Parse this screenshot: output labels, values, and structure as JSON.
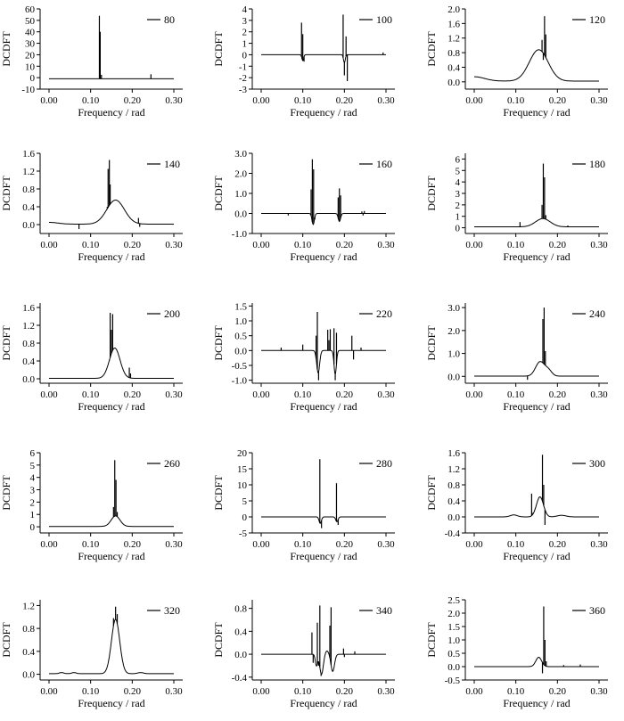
{
  "figure": {
    "panel_ylabel": "DCDFT",
    "panel_xlabel": "Frequency / rad"
  },
  "chart_data": [
    {
      "type": "line",
      "legend": "80",
      "xlabel": "Frequency / rad",
      "ylabel": "DCDFT",
      "xlim": [
        0,
        0.3
      ],
      "xticks": [
        "0.00",
        "0.10",
        "0.20",
        "0.30"
      ],
      "ylim": [
        -10,
        60
      ],
      "yticks": [
        "-10",
        "0",
        "10",
        "20",
        "30",
        "40",
        "50",
        "60"
      ],
      "background": {
        "base": -1,
        "bumps": []
      },
      "spikes": [
        {
          "x": 0.121,
          "y": 54
        },
        {
          "x": 0.123,
          "y": 40
        },
        {
          "x": 0.126,
          "y": 2.5
        },
        {
          "x": 0.245,
          "y": 3
        }
      ]
    },
    {
      "type": "line",
      "legend": "100",
      "xlabel": "Frequency / rad",
      "ylabel": "DCDFT",
      "xlim": [
        0,
        0.3
      ],
      "xticks": [
        "0.00",
        "0.10",
        "0.20",
        "0.30"
      ],
      "ylim": [
        -3,
        4
      ],
      "yticks": [
        "-3",
        "-2",
        "-1",
        "0",
        "1",
        "2",
        "3",
        "4"
      ],
      "background": {
        "base": 0,
        "bumps": [
          {
            "c": 0.1,
            "w": 0.003,
            "h": -0.5
          },
          {
            "c": 0.2,
            "w": 0.003,
            "h": -0.7
          }
        ]
      },
      "spikes": [
        {
          "x": 0.097,
          "y": 2.8
        },
        {
          "x": 0.1,
          "y": 1.8
        },
        {
          "x": 0.103,
          "y": -0.6
        },
        {
          "x": 0.197,
          "y": 3.5
        },
        {
          "x": 0.2,
          "y": -1.8
        },
        {
          "x": 0.204,
          "y": 1.6
        },
        {
          "x": 0.207,
          "y": -2.3
        },
        {
          "x": 0.293,
          "y": 0.2
        }
      ]
    },
    {
      "type": "line",
      "legend": "120",
      "xlabel": "Frequency / rad",
      "ylabel": "DCDFT",
      "xlim": [
        0,
        0.3
      ],
      "xticks": [
        "0.00",
        "0.10",
        "0.20",
        "0.30"
      ],
      "ylim": [
        -0.2,
        2.0
      ],
      "yticks": [
        "0.0",
        "0.4",
        "0.8",
        "1.2",
        "1.6",
        "2.0"
      ],
      "background": {
        "base": 0.02,
        "bumps": [
          {
            "c": 0.0,
            "w": 0.035,
            "h": 0.12
          },
          {
            "c": 0.155,
            "w": 0.032,
            "h": 0.86
          }
        ]
      },
      "spikes": [
        {
          "x": 0.163,
          "y": 1.15
        },
        {
          "x": 0.166,
          "y": 0.6
        },
        {
          "x": 0.169,
          "y": 1.8
        },
        {
          "x": 0.172,
          "y": 1.3
        }
      ]
    },
    {
      "type": "line",
      "legend": "140",
      "xlabel": "Frequency / rad",
      "ylabel": "DCDFT",
      "xlim": [
        0,
        0.3
      ],
      "xticks": [
        "0.00",
        "0.10",
        "0.20",
        "0.30"
      ],
      "ylim": [
        -0.2,
        1.6
      ],
      "yticks": [
        "0.0",
        "0.4",
        "0.8",
        "1.2",
        "1.6"
      ],
      "background": {
        "base": 0.01,
        "bumps": [
          {
            "c": 0.0,
            "w": 0.03,
            "h": 0.04
          },
          {
            "c": 0.16,
            "w": 0.03,
            "h": 0.54
          }
        ]
      },
      "spikes": [
        {
          "x": 0.072,
          "y": -0.1
        },
        {
          "x": 0.14,
          "y": 0.4
        },
        {
          "x": 0.142,
          "y": 1.25
        },
        {
          "x": 0.145,
          "y": 1.45
        },
        {
          "x": 0.147,
          "y": 0.9
        },
        {
          "x": 0.215,
          "y": 0.15
        },
        {
          "x": 0.218,
          "y": -0.05
        }
      ]
    },
    {
      "type": "line",
      "legend": "160",
      "xlabel": "Frequency / rad",
      "ylabel": "DCDFT",
      "xlim": [
        0,
        0.3
      ],
      "xticks": [
        "0.00",
        "0.10",
        "0.20",
        "0.30"
      ],
      "ylim": [
        -1.0,
        3.0
      ],
      "yticks": [
        "-1.0",
        "0.0",
        "1.0",
        "2.0",
        "3.0"
      ],
      "background": {
        "base": 0,
        "bumps": [
          {
            "c": 0.125,
            "w": 0.004,
            "h": -0.55
          },
          {
            "c": 0.188,
            "w": 0.004,
            "h": -0.4
          }
        ]
      },
      "spikes": [
        {
          "x": 0.065,
          "y": -0.1
        },
        {
          "x": 0.12,
          "y": 1.2
        },
        {
          "x": 0.123,
          "y": 2.7
        },
        {
          "x": 0.126,
          "y": 2.2
        },
        {
          "x": 0.129,
          "y": -0.3
        },
        {
          "x": 0.185,
          "y": 0.8
        },
        {
          "x": 0.188,
          "y": 1.25
        },
        {
          "x": 0.191,
          "y": 0.9
        },
        {
          "x": 0.242,
          "y": 0.1
        },
        {
          "x": 0.245,
          "y": -0.1
        },
        {
          "x": 0.248,
          "y": 0.12
        }
      ]
    },
    {
      "type": "line",
      "legend": "180",
      "xlabel": "Frequency / rad",
      "ylabel": "DCDFT",
      "xlim": [
        0,
        0.3
      ],
      "xticks": [
        "0.00",
        "0.10",
        "0.20",
        "0.30"
      ],
      "ylim": [
        -0.5,
        6.5
      ],
      "yticks": [
        "0",
        "1",
        "2",
        "3",
        "4",
        "5",
        "6"
      ],
      "background": {
        "base": 0.08,
        "bumps": [
          {
            "c": 0.165,
            "w": 0.025,
            "h": 0.72
          }
        ]
      },
      "spikes": [
        {
          "x": 0.11,
          "y": 0.5
        },
        {
          "x": 0.163,
          "y": 2.0
        },
        {
          "x": 0.166,
          "y": 5.6
        },
        {
          "x": 0.169,
          "y": 4.4
        },
        {
          "x": 0.172,
          "y": 1.1
        },
        {
          "x": 0.225,
          "y": 0.2
        }
      ]
    },
    {
      "type": "line",
      "legend": "200",
      "xlabel": "Frequency / rad",
      "ylabel": "DCDFT",
      "xlim": [
        0,
        0.3
      ],
      "xticks": [
        "0.00",
        "0.10",
        "0.20",
        "0.30"
      ],
      "ylim": [
        -0.1,
        1.7
      ],
      "yticks": [
        "0.0",
        "0.4",
        "0.8",
        "1.2",
        "1.6"
      ],
      "background": {
        "base": 0.01,
        "bumps": [
          {
            "c": 0.158,
            "w": 0.018,
            "h": 0.68
          }
        ]
      },
      "spikes": [
        {
          "x": 0.145,
          "y": 0.4
        },
        {
          "x": 0.147,
          "y": 1.48
        },
        {
          "x": 0.15,
          "y": 1.1
        },
        {
          "x": 0.153,
          "y": 1.45
        },
        {
          "x": 0.193,
          "y": 0.25
        },
        {
          "x": 0.196,
          "y": 0.12
        }
      ]
    },
    {
      "type": "line",
      "legend": "220",
      "xlabel": "Frequency / rad",
      "ylabel": "DCDFT",
      "xlim": [
        0,
        0.3
      ],
      "xticks": [
        "0.00",
        "0.10",
        "0.20",
        "0.30"
      ],
      "ylim": [
        -1.1,
        1.6
      ],
      "yticks": [
        "-1.0",
        "-0.5",
        "0.0",
        "0.5",
        "1.0",
        "1.5"
      ],
      "background": {
        "base": 0,
        "bumps": [
          {
            "c": 0.137,
            "w": 0.005,
            "h": -0.75
          },
          {
            "c": 0.178,
            "w": 0.004,
            "h": -0.8
          }
        ]
      },
      "spikes": [
        {
          "x": 0.048,
          "y": 0.1
        },
        {
          "x": 0.1,
          "y": 0.2
        },
        {
          "x": 0.132,
          "y": 0.5
        },
        {
          "x": 0.135,
          "y": 1.3
        },
        {
          "x": 0.138,
          "y": -1.0
        },
        {
          "x": 0.16,
          "y": 0.7
        },
        {
          "x": 0.163,
          "y": 0.35
        },
        {
          "x": 0.166,
          "y": 0.72
        },
        {
          "x": 0.175,
          "y": 0.75
        },
        {
          "x": 0.178,
          "y": -1.0
        },
        {
          "x": 0.181,
          "y": 0.6
        },
        {
          "x": 0.218,
          "y": 0.5
        },
        {
          "x": 0.222,
          "y": -0.3
        },
        {
          "x": 0.24,
          "y": 0.1
        }
      ]
    },
    {
      "type": "line",
      "legend": "240",
      "xlabel": "Frequency / rad",
      "ylabel": "DCDFT",
      "xlim": [
        0,
        0.3
      ],
      "xticks": [
        "0.00",
        "0.10",
        "0.20",
        "0.30"
      ],
      "ylim": [
        -0.3,
        3.2
      ],
      "yticks": [
        "0.0",
        "1.0",
        "2.0",
        "3.0"
      ],
      "background": {
        "base": 0.01,
        "bumps": [
          {
            "c": 0.158,
            "w": 0.015,
            "h": 0.62
          },
          {
            "c": 0.178,
            "w": 0.012,
            "h": 0.25
          }
        ]
      },
      "spikes": [
        {
          "x": 0.128,
          "y": -0.15
        },
        {
          "x": 0.165,
          "y": 2.5
        },
        {
          "x": 0.168,
          "y": 3.0
        },
        {
          "x": 0.171,
          "y": 1.1
        }
      ]
    },
    {
      "type": "line",
      "legend": "260",
      "xlabel": "Frequency / rad",
      "ylabel": "DCDFT",
      "xlim": [
        0,
        0.3
      ],
      "xticks": [
        "0.00",
        "0.10",
        "0.20",
        "0.30"
      ],
      "ylim": [
        -0.5,
        6
      ],
      "yticks": [
        "0",
        "1",
        "2",
        "3",
        "4",
        "5",
        "6"
      ],
      "background": {
        "base": 0.03,
        "bumps": [
          {
            "c": 0.16,
            "w": 0.015,
            "h": 0.85
          }
        ]
      },
      "spikes": [
        {
          "x": 0.155,
          "y": 1.6
        },
        {
          "x": 0.158,
          "y": 5.4
        },
        {
          "x": 0.161,
          "y": 3.8
        },
        {
          "x": 0.164,
          "y": 1.2
        }
      ]
    },
    {
      "type": "line",
      "legend": "280",
      "xlabel": "Frequency / rad",
      "ylabel": "DCDFT",
      "xlim": [
        0,
        0.3
      ],
      "xticks": [
        "0.00",
        "0.10",
        "0.20",
        "0.30"
      ],
      "ylim": [
        -5,
        20
      ],
      "yticks": [
        "-5",
        "0",
        "5",
        "10",
        "15",
        "20"
      ],
      "background": {
        "base": 0,
        "bumps": [
          {
            "c": 0.142,
            "w": 0.004,
            "h": -2
          },
          {
            "c": 0.182,
            "w": 0.004,
            "h": -1.5
          }
        ]
      },
      "spikes": [
        {
          "x": 0.141,
          "y": 18
        },
        {
          "x": 0.145,
          "y": -3.5
        },
        {
          "x": 0.181,
          "y": 10.5
        },
        {
          "x": 0.185,
          "y": -2.5
        }
      ]
    },
    {
      "type": "line",
      "legend": "300",
      "xlabel": "Frequency / rad",
      "ylabel": "DCDFT",
      "xlim": [
        0,
        0.3
      ],
      "xticks": [
        "0.00",
        "0.10",
        "0.20",
        "0.30"
      ],
      "ylim": [
        -0.4,
        1.6
      ],
      "yticks": [
        "-0.4",
        "0.0",
        "0.4",
        "0.8",
        "1.2",
        "1.6"
      ],
      "background": {
        "base": 0,
        "bumps": [
          {
            "c": 0.158,
            "w": 0.012,
            "h": 0.5
          },
          {
            "c": 0.095,
            "w": 0.012,
            "h": 0.05
          },
          {
            "c": 0.21,
            "w": 0.015,
            "h": 0.04
          }
        ]
      },
      "spikes": [
        {
          "x": 0.138,
          "y": 0.58
        },
        {
          "x": 0.141,
          "y": 0.1
        },
        {
          "x": 0.164,
          "y": 1.55
        },
        {
          "x": 0.167,
          "y": 0.8
        },
        {
          "x": 0.17,
          "y": -0.2
        }
      ]
    },
    {
      "type": "line",
      "legend": "320",
      "xlabel": "Frequency / rad",
      "ylabel": "DCDFT",
      "xlim": [
        0,
        0.3
      ],
      "xticks": [
        "0.00",
        "0.10",
        "0.20",
        "0.30"
      ],
      "ylim": [
        -0.1,
        1.3
      ],
      "yticks": [
        "0.0",
        "0.4",
        "0.8",
        "1.2"
      ],
      "background": {
        "base": 0.01,
        "bumps": [
          {
            "c": 0.16,
            "w": 0.014,
            "h": 0.95
          },
          {
            "c": 0.03,
            "w": 0.008,
            "h": 0.02
          },
          {
            "c": 0.06,
            "w": 0.008,
            "h": 0.02
          },
          {
            "c": 0.22,
            "w": 0.01,
            "h": 0.02
          }
        ]
      },
      "spikes": [
        {
          "x": 0.155,
          "y": 0.98
        },
        {
          "x": 0.16,
          "y": 1.18
        },
        {
          "x": 0.164,
          "y": 1.05
        }
      ]
    },
    {
      "type": "line",
      "legend": "340",
      "xlabel": "Frequency / rad",
      "ylabel": "DCDFT",
      "xlim": [
        0,
        0.3
      ],
      "xticks": [
        "0.00",
        "0.10",
        "0.20",
        "0.30"
      ],
      "ylim": [
        -0.45,
        0.95
      ],
      "yticks": [
        "-0.4",
        "0.0",
        "0.4",
        "0.8"
      ],
      "background": {
        "base": 0,
        "bumps": [
          {
            "c": 0.133,
            "w": 0.004,
            "h": -0.2
          },
          {
            "c": 0.145,
            "w": 0.006,
            "h": -0.35
          },
          {
            "c": 0.158,
            "w": 0.006,
            "h": 0.06
          },
          {
            "c": 0.172,
            "w": 0.006,
            "h": -0.3
          }
        ]
      },
      "spikes": [
        {
          "x": 0.122,
          "y": 0.38
        },
        {
          "x": 0.125,
          "y": -0.15
        },
        {
          "x": 0.135,
          "y": 0.55
        },
        {
          "x": 0.138,
          "y": -0.2
        },
        {
          "x": 0.141,
          "y": 0.85
        },
        {
          "x": 0.144,
          "y": -0.38
        },
        {
          "x": 0.165,
          "y": 0.5
        },
        {
          "x": 0.168,
          "y": 0.82
        },
        {
          "x": 0.171,
          "y": -0.3
        },
        {
          "x": 0.198,
          "y": 0.1
        },
        {
          "x": 0.2,
          "y": -0.05
        },
        {
          "x": 0.225,
          "y": 0.05
        }
      ]
    },
    {
      "type": "line",
      "legend": "360",
      "xlabel": "Frequency / rad",
      "ylabel": "DCDFT",
      "xlim": [
        0,
        0.3
      ],
      "xticks": [
        "0.00",
        "0.10",
        "0.20",
        "0.30"
      ],
      "ylim": [
        -0.5,
        2.5
      ],
      "yticks": [
        "-0.5",
        "0.0",
        "0.5",
        "1.0",
        "1.5",
        "2.0",
        "2.5"
      ],
      "background": {
        "base": 0,
        "bumps": [
          {
            "c": 0.155,
            "w": 0.01,
            "h": 0.35
          }
        ]
      },
      "spikes": [
        {
          "x": 0.164,
          "y": -0.25
        },
        {
          "x": 0.167,
          "y": 2.25
        },
        {
          "x": 0.17,
          "y": 1.0
        },
        {
          "x": 0.173,
          "y": 0.2
        },
        {
          "x": 0.215,
          "y": 0.06
        },
        {
          "x": 0.255,
          "y": 0.08
        }
      ]
    }
  ]
}
